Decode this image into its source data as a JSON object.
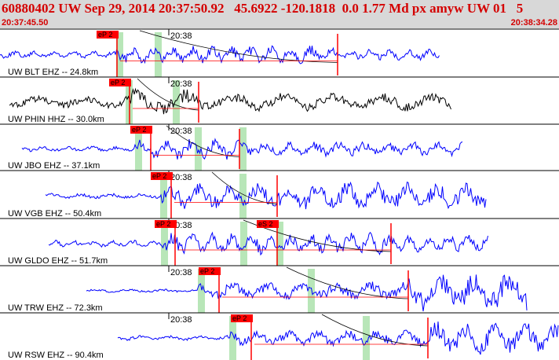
{
  "header": {
    "title": "60880402 UW Sep 29, 2014 20:37:50.92   45.6922 -120.1818  0.0 1.77 Md px amyw UW 01   5",
    "start_time": "20:37:45.50",
    "end_time": "20:38:34.28"
  },
  "colors": {
    "trace_blue": "#0000ff",
    "trace_black": "#000000",
    "pick_red": "#ff0000",
    "band_green": "#b8e6b8"
  },
  "traces": [
    {
      "label": "UW BLT EHZ -- 24.8km",
      "color": "#0000ff",
      "minute_label": "20:38",
      "picks": [
        "eP 2"
      ]
    },
    {
      "label": "UW PHIN HHZ -- 30.0km",
      "color": "#000000",
      "minute_label": "20:38",
      "picks": [
        "eP 2"
      ]
    },
    {
      "label": "UW JBO EHZ -- 37.1km",
      "color": "#0000ff",
      "minute_label": "20:38",
      "picks": [
        "eP 2"
      ]
    },
    {
      "label": "UW VGB EHZ -- 50.4km",
      "color": "#0000ff",
      "minute_label": "20:38",
      "picks": [
        "eP 2"
      ]
    },
    {
      "label": "UW GLDO EHZ -- 51.7km",
      "color": "#0000ff",
      "minute_label": "20:38",
      "picks": [
        "eP 2",
        "eS 2"
      ]
    },
    {
      "label": "UW TRW EHZ -- 72.3km",
      "color": "#0000ff",
      "minute_label": "20:38",
      "picks": [
        "eP 2"
      ]
    },
    {
      "label": "UW RSW EHZ -- 90.4km",
      "color": "#0000ff",
      "minute_label": "20:38",
      "picks": [
        "eP 2"
      ]
    }
  ]
}
